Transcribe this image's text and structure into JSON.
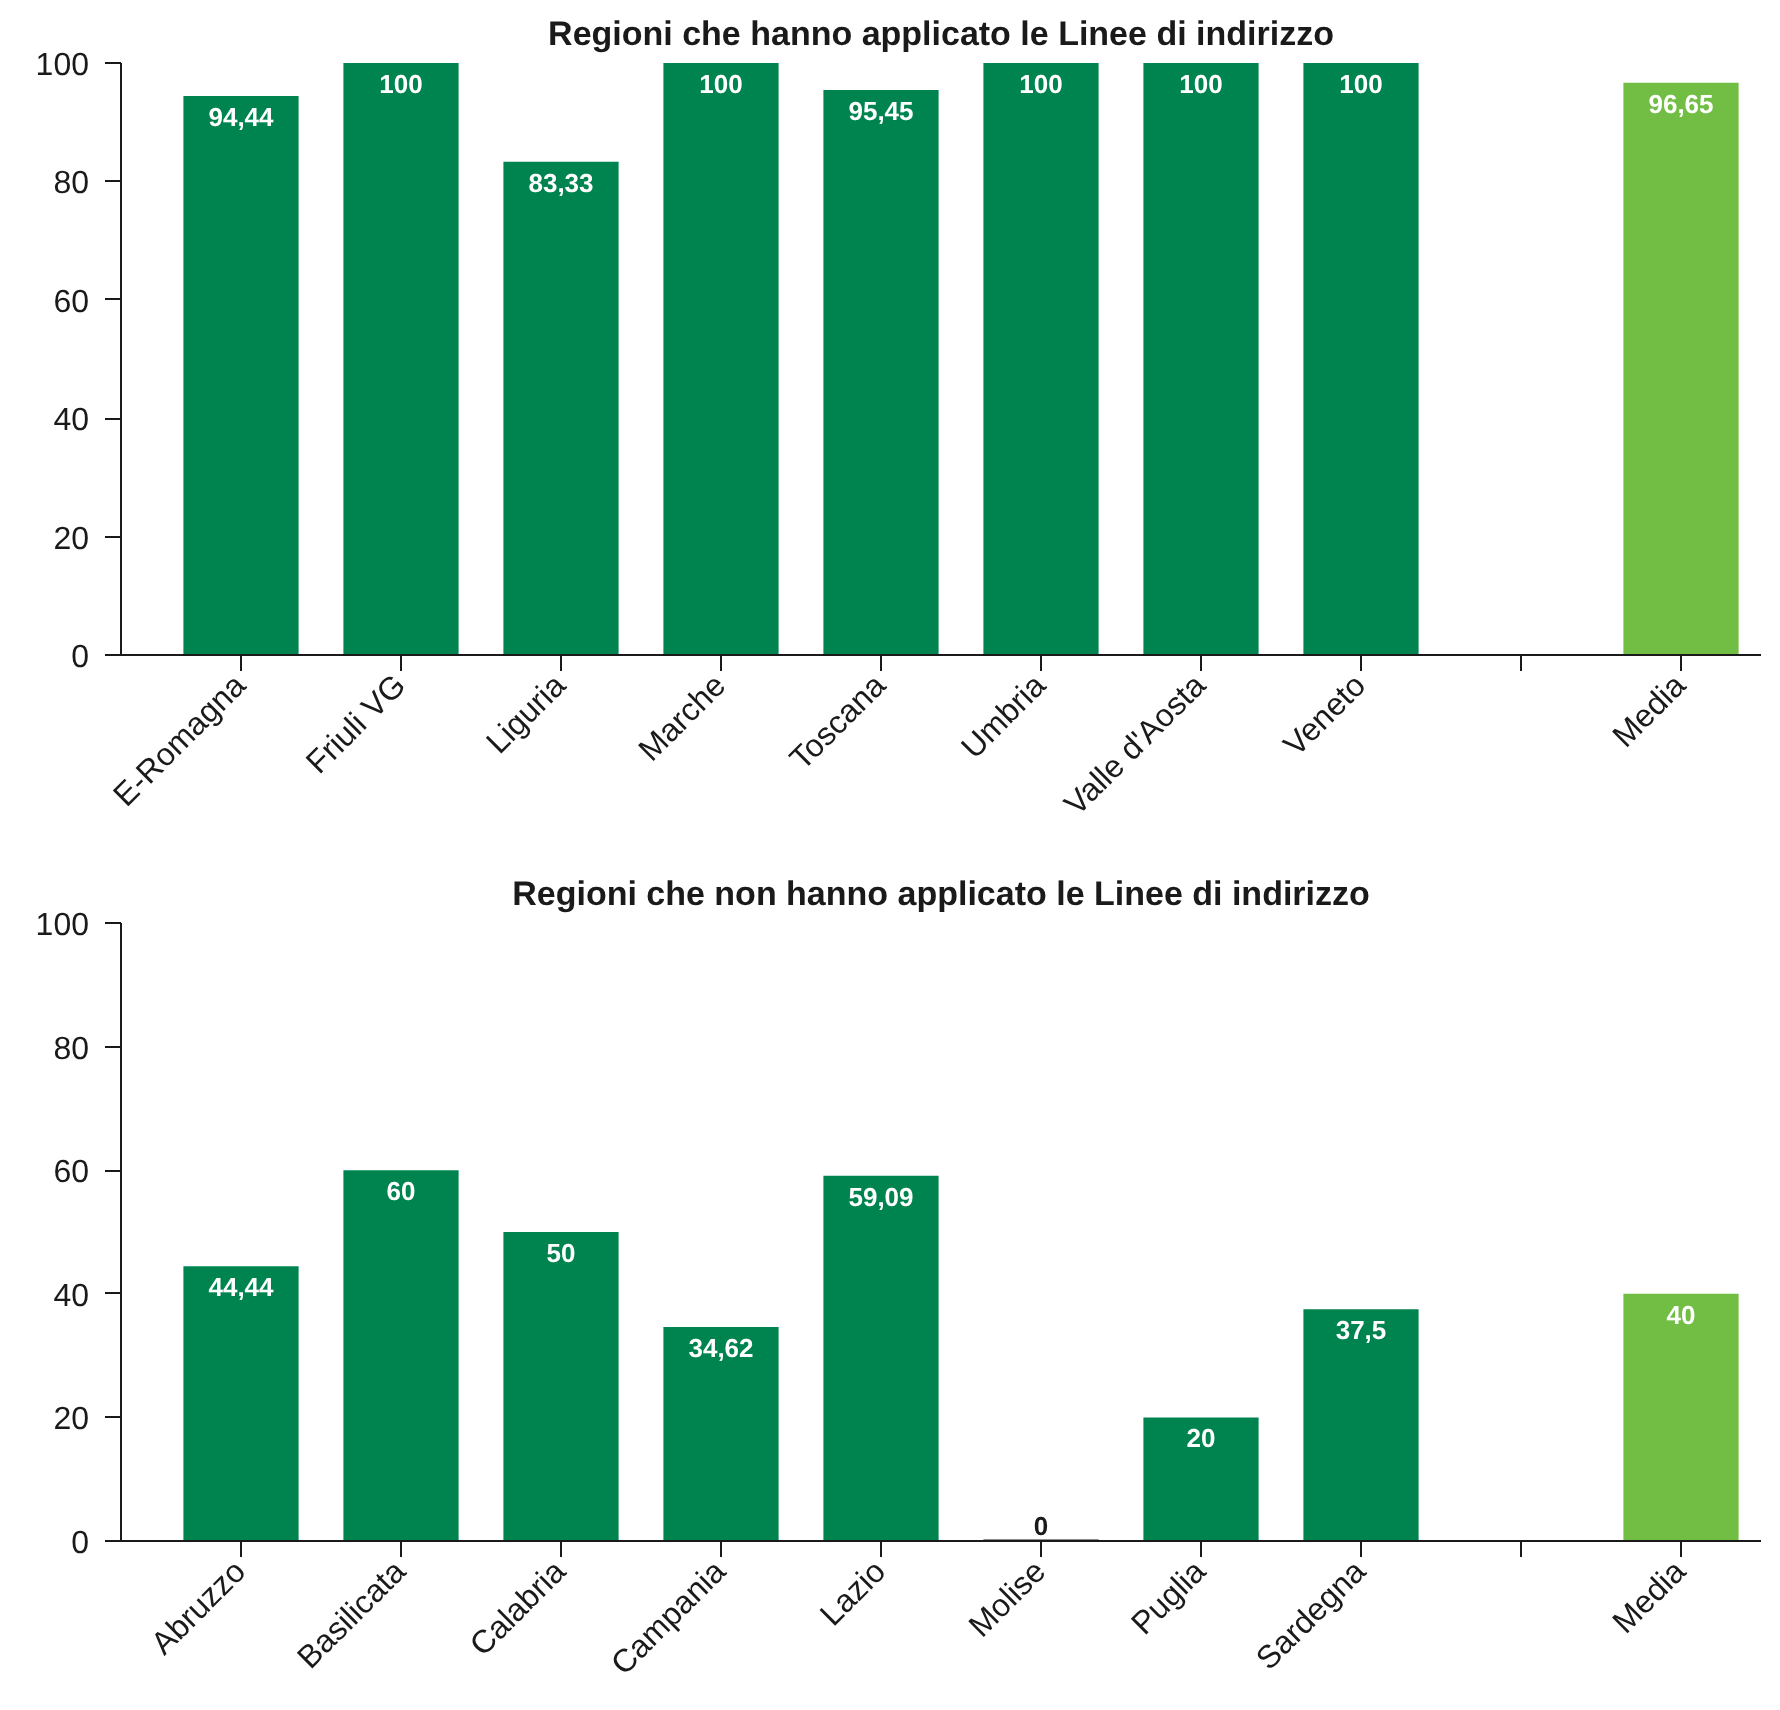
{
  "chart_data": [
    {
      "type": "bar",
      "title": "Regioni che hanno applicato le Linee di indirizzo",
      "categories": [
        "E-Romagna",
        "Friuli VG",
        "Liguria",
        "Marche",
        "Toscana",
        "Umbria",
        "Valle d'Aosta",
        "Veneto",
        null,
        "Media"
      ],
      "values": [
        94.44,
        100,
        83.33,
        100,
        95.45,
        100,
        100,
        100,
        null,
        96.65
      ],
      "colors": [
        "#00844f",
        "#00844f",
        "#00844f",
        "#00844f",
        "#00844f",
        "#00844f",
        "#00844f",
        "#00844f",
        "#00844f",
        "#72be44"
      ],
      "value_labels": [
        "94,44",
        "100",
        "83,33",
        "100",
        "95,45",
        "100",
        "100",
        "100",
        null,
        "96,65"
      ],
      "ylim": [
        0,
        100
      ],
      "yticks": [
        0,
        20,
        40,
        60,
        80,
        100
      ],
      "grid": false
    },
    {
      "type": "bar",
      "title": "Regioni che non hanno applicato le Linee di indirizzo",
      "categories": [
        "Abruzzo",
        "Basilicata",
        "Calabria",
        "Campania",
        "Lazio",
        "Molise",
        "Puglia",
        "Sardegna",
        null,
        "Media"
      ],
      "values": [
        44.44,
        60,
        50,
        34.62,
        59.09,
        0,
        20,
        37.5,
        null,
        40
      ],
      "colors": [
        "#00844f",
        "#00844f",
        "#00844f",
        "#00844f",
        "#00844f",
        "#00844f",
        "#00844f",
        "#00844f",
        "#00844f",
        "#72be44"
      ],
      "value_labels": [
        "44,44",
        "60",
        "50",
        "34,62",
        "59,09",
        "0",
        "20",
        "37,5",
        null,
        "40"
      ],
      "ylim": [
        0,
        100
      ],
      "yticks": [
        0,
        20,
        40,
        60,
        80,
        100
      ],
      "grid": false
    }
  ]
}
